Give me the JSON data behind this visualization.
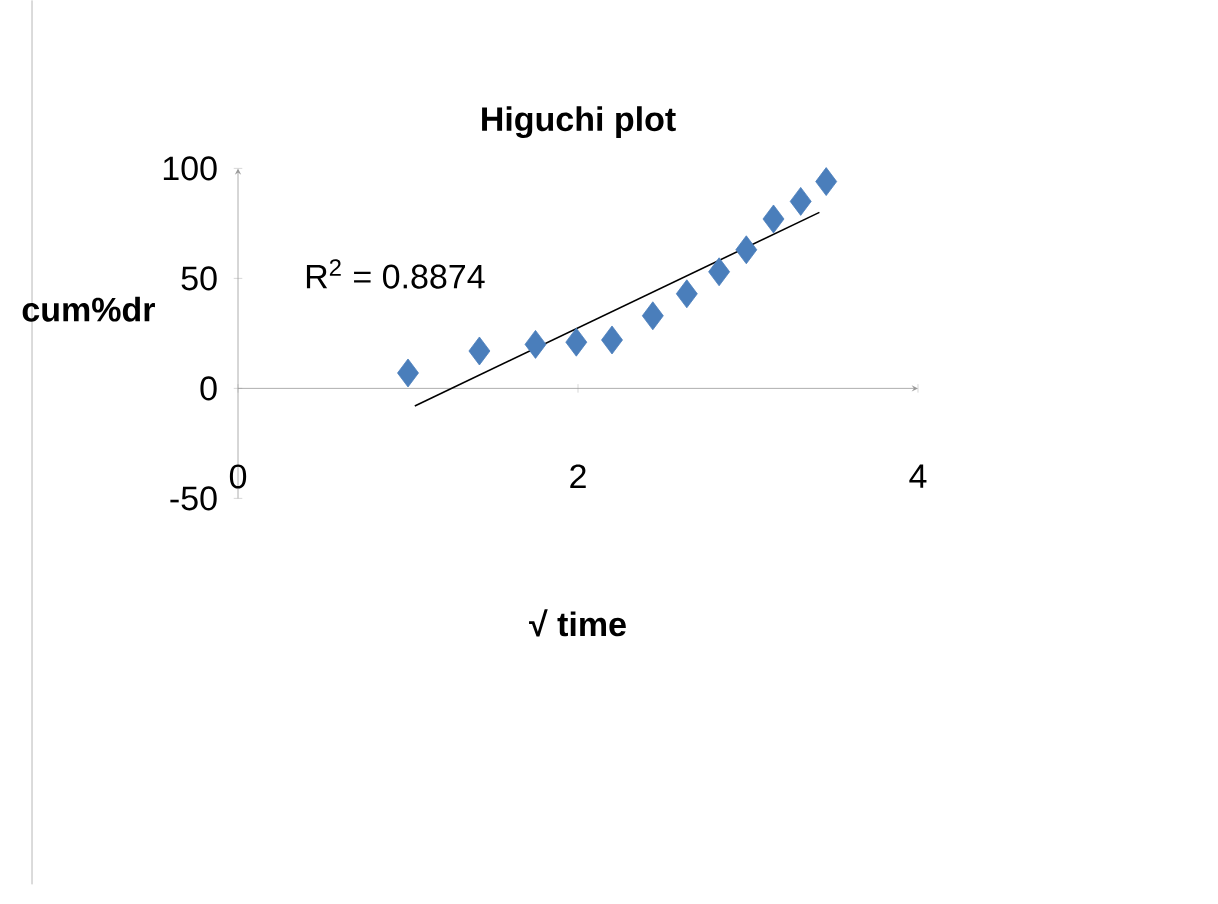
{
  "chart_data": {
    "type": "scatter",
    "title": "Higuchi    plot",
    "xlabel": "√ time",
    "ylabel": "cum%dr",
    "annotations": [
      "R$^{2}$ = 0.8874"
    ],
    "series": [
      {
        "color": "#4a7ebb",
        "marker": "diamond",
        "x": [
          1.0,
          1.42,
          1.75,
          1.99,
          2.2,
          2.44,
          2.64,
          2.83,
          2.99,
          3.15,
          3.31,
          3.46
        ],
        "values": [
          7,
          17,
          20,
          21,
          22,
          33,
          43,
          53,
          63,
          77,
          85,
          94
        ]
      },
      {
        "type": "line",
        "color": "#000000",
        "marker": "none",
        "x": [
          1.04,
          3.42
        ],
        "values": [
          -8,
          80
        ]
      }
    ],
    "xlim": [
      0,
      4
    ],
    "ylim": [
      -50,
      100
    ],
    "xticks": [
      0,
      2,
      4
    ],
    "yticks": [
      -50,
      0,
      50,
      100
    ],
    "grid": false
  }
}
